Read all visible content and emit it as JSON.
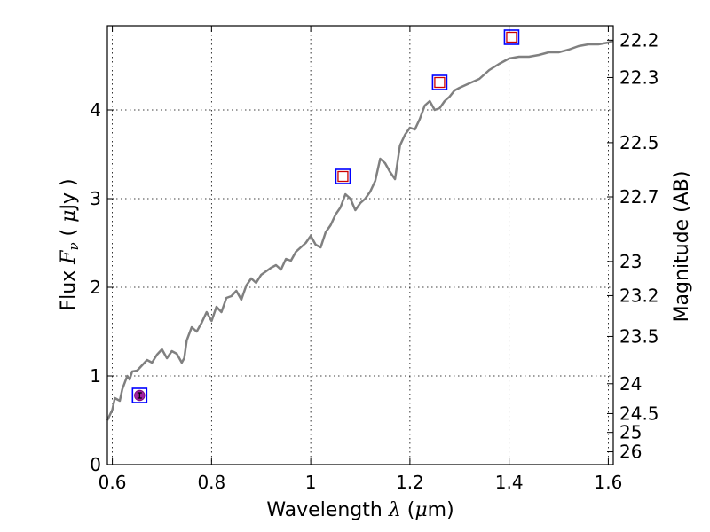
{
  "chart_data": {
    "type": "line",
    "xlabel": {
      "prefix": "Wavelength ",
      "symbol": "λ",
      "unit_open": " (",
      "unit_mu": "μ",
      "unit_rest": "m)"
    },
    "ylabel": {
      "prefix": "Flux ",
      "symbol": "F",
      "subscript": "ν",
      "unit_open": " ( ",
      "unit_mu": "μ",
      "unit_rest": "Jy )"
    },
    "y2label": "Magnitude (AB)",
    "xlim": [
      0.59,
      1.61
    ],
    "ylim": [
      0,
      4.95
    ],
    "grid": true,
    "x_ticks": [
      {
        "value": 0.6,
        "label": "0.6"
      },
      {
        "value": 0.8,
        "label": "0.8"
      },
      {
        "value": 1.0,
        "label": "1"
      },
      {
        "value": 1.2,
        "label": "1.2"
      },
      {
        "value": 1.4,
        "label": "1.4"
      },
      {
        "value": 1.6,
        "label": "1.6"
      }
    ],
    "y_ticks": [
      {
        "value": 0,
        "label": "0"
      },
      {
        "value": 1,
        "label": "1"
      },
      {
        "value": 2,
        "label": "2"
      },
      {
        "value": 3,
        "label": "3"
      },
      {
        "value": 4,
        "label": "4"
      }
    ],
    "y2_ticks": [
      {
        "value": 22.2,
        "label": "22.2"
      },
      {
        "value": 22.3,
        "label": "22.3"
      },
      {
        "value": 22.5,
        "label": "22.5"
      },
      {
        "value": 22.7,
        "label": "22.7"
      },
      {
        "value": 23,
        "label": "23"
      },
      {
        "value": 23.2,
        "label": "23.2"
      },
      {
        "value": 23.5,
        "label": "23.5"
      },
      {
        "value": 24,
        "label": "24"
      },
      {
        "value": 24.5,
        "label": "24.5"
      },
      {
        "value": 25,
        "label": "25"
      },
      {
        "value": 26,
        "label": "26"
      }
    ],
    "series": [
      {
        "type": "line",
        "color": "#808080",
        "x": [
          0.59,
          0.6,
          0.605,
          0.615,
          0.62,
          0.63,
          0.635,
          0.64,
          0.65,
          0.66,
          0.67,
          0.68,
          0.69,
          0.7,
          0.71,
          0.72,
          0.73,
          0.74,
          0.745,
          0.75,
          0.76,
          0.77,
          0.78,
          0.79,
          0.8,
          0.81,
          0.82,
          0.83,
          0.84,
          0.85,
          0.86,
          0.87,
          0.88,
          0.89,
          0.9,
          0.91,
          0.92,
          0.93,
          0.94,
          0.95,
          0.96,
          0.97,
          0.98,
          0.99,
          1.0,
          1.01,
          1.02,
          1.03,
          1.04,
          1.05,
          1.06,
          1.07,
          1.08,
          1.09,
          1.1,
          1.11,
          1.12,
          1.13,
          1.14,
          1.15,
          1.16,
          1.17,
          1.18,
          1.19,
          1.2,
          1.21,
          1.22,
          1.23,
          1.24,
          1.25,
          1.26,
          1.27,
          1.28,
          1.29,
          1.3,
          1.32,
          1.34,
          1.36,
          1.38,
          1.4,
          1.42,
          1.44,
          1.46,
          1.48,
          1.5,
          1.52,
          1.54,
          1.56,
          1.58,
          1.6,
          1.61
        ],
        "y": [
          0.5,
          0.62,
          0.75,
          0.72,
          0.85,
          1.0,
          0.96,
          1.05,
          1.06,
          1.12,
          1.18,
          1.15,
          1.24,
          1.3,
          1.2,
          1.28,
          1.25,
          1.15,
          1.2,
          1.4,
          1.55,
          1.5,
          1.6,
          1.72,
          1.62,
          1.78,
          1.72,
          1.88,
          1.9,
          1.96,
          1.86,
          2.02,
          2.1,
          2.05,
          2.14,
          2.18,
          2.22,
          2.25,
          2.2,
          2.32,
          2.3,
          2.4,
          2.45,
          2.5,
          2.58,
          2.48,
          2.45,
          2.62,
          2.7,
          2.82,
          2.9,
          3.05,
          3.0,
          2.87,
          2.95,
          3.0,
          3.08,
          3.2,
          3.45,
          3.4,
          3.3,
          3.22,
          3.6,
          3.72,
          3.8,
          3.78,
          3.9,
          4.05,
          4.1,
          4.0,
          4.02,
          4.1,
          4.15,
          4.22,
          4.25,
          4.3,
          4.35,
          4.45,
          4.52,
          4.58,
          4.6,
          4.6,
          4.62,
          4.65,
          4.65,
          4.68,
          4.72,
          4.74,
          4.74,
          4.76,
          4.78
        ]
      },
      {
        "type": "photometry",
        "marker": "square",
        "outer_color": "#0000ff",
        "inner_color": "#cc0000",
        "points": [
          {
            "x": 1.065,
            "y": 3.25
          },
          {
            "x": 1.26,
            "y": 4.31
          },
          {
            "x": 1.405,
            "y": 4.82
          }
        ]
      },
      {
        "type": "photometry",
        "marker": "circle-in-square",
        "outer_color": "#0000ff",
        "fill_color": "#a020a0",
        "points": [
          {
            "x": 0.655,
            "y": 0.78,
            "yerr": 0.03
          }
        ]
      }
    ]
  }
}
